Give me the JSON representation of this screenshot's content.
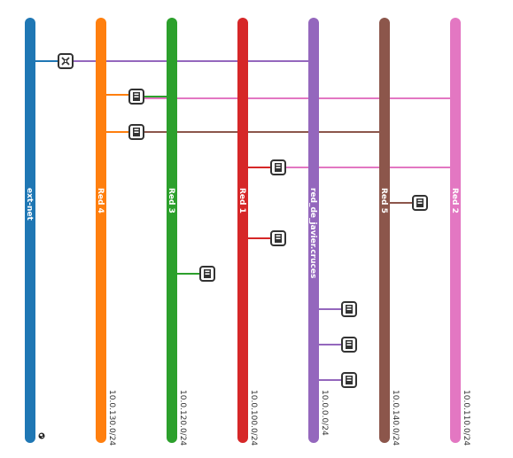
{
  "networks": [
    {
      "id": "ext-net",
      "name": "ext-net",
      "cidr": "",
      "color": "#1f77b4",
      "external": true
    },
    {
      "id": "red4",
      "name": "Red 4",
      "cidr": "10.0.130.0/24",
      "color": "#ff7f0e"
    },
    {
      "id": "red3",
      "name": "Red 3",
      "cidr": "10.0.120.0/24",
      "color": "#2ca02c"
    },
    {
      "id": "red1",
      "name": "Red 1",
      "cidr": "10.0.100.0/24",
      "color": "#d62728"
    },
    {
      "id": "javier",
      "name": "red_de_javier.cruces",
      "cidr": "10.0.0.0/24",
      "color": "#9467bd"
    },
    {
      "id": "red5",
      "name": "Red 5",
      "cidr": "10.0.140.0/24",
      "color": "#8c564b"
    },
    {
      "id": "red2",
      "name": "Red 2",
      "cidr": "10.0.110.0/24",
      "color": "#e377c2"
    }
  ],
  "devices": [
    {
      "id": "router",
      "type": "router-icon",
      "connections": [
        {
          "network": "ext-net",
          "color": "#1f77b4"
        },
        {
          "network": "javier",
          "color": "#9467bd"
        }
      ]
    },
    {
      "id": "instance-1",
      "type": "instance-icon",
      "connections": [
        {
          "network": "red4",
          "color": "#ff7f0e"
        },
        {
          "network": "red3",
          "color": "#2ca02c"
        },
        {
          "network": "red2",
          "color": "#e377c2"
        }
      ]
    },
    {
      "id": "instance-2",
      "type": "instance-icon",
      "connections": [
        {
          "network": "red4",
          "color": "#ff7f0e"
        },
        {
          "network": "red5",
          "color": "#8c564b"
        }
      ]
    },
    {
      "id": "instance-3",
      "type": "instance-icon",
      "connections": [
        {
          "network": "red1",
          "color": "#d62728"
        },
        {
          "network": "red2",
          "color": "#e377c2"
        }
      ]
    },
    {
      "id": "instance-4",
      "type": "instance-icon",
      "connections": [
        {
          "network": "red5",
          "color": "#8c564b"
        }
      ]
    },
    {
      "id": "instance-5",
      "type": "instance-icon",
      "connections": [
        {
          "network": "red1",
          "color": "#d62728"
        }
      ]
    },
    {
      "id": "instance-6",
      "type": "instance-icon",
      "connections": [
        {
          "network": "red3",
          "color": "#2ca02c"
        }
      ]
    },
    {
      "id": "instance-7",
      "type": "instance-icon",
      "connections": [
        {
          "network": "javier",
          "color": "#9467bd"
        }
      ]
    },
    {
      "id": "instance-8",
      "type": "instance-icon",
      "connections": [
        {
          "network": "javier",
          "color": "#9467bd"
        }
      ]
    },
    {
      "id": "instance-9",
      "type": "instance-icon",
      "connections": [
        {
          "network": "javier",
          "color": "#9467bd"
        }
      ]
    }
  ],
  "external_marker": "globe-icon"
}
